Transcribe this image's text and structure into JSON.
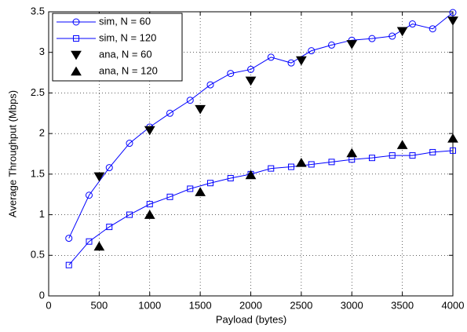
{
  "chart_data": {
    "type": "line",
    "xlabel": "Payload (bytes)",
    "ylabel": "Average Throughput (Mbps)",
    "xlim": [
      0,
      4000
    ],
    "xticks": [
      0,
      500,
      1000,
      1500,
      2000,
      2500,
      3000,
      3500,
      4000
    ],
    "ylim": [
      0,
      3.5
    ],
    "yticks": [
      0,
      0.5,
      1,
      1.5,
      2,
      2.5,
      3,
      3.5
    ],
    "grid": true,
    "legend": "upper left",
    "series": [
      {
        "name": "sim, N = 60",
        "color": "#0000ff",
        "marker": "circle",
        "line": true,
        "x": [
          200,
          400,
          600,
          800,
          1000,
          1200,
          1400,
          1600,
          1800,
          2000,
          2200,
          2400,
          2600,
          2800,
          3000,
          3200,
          3400,
          3600,
          3800,
          4000
        ],
        "values": [
          0.71,
          1.24,
          1.58,
          1.88,
          2.08,
          2.25,
          2.41,
          2.6,
          2.74,
          2.79,
          2.94,
          2.87,
          3.02,
          3.09,
          3.15,
          3.17,
          3.2,
          3.35,
          3.29,
          3.49
        ]
      },
      {
        "name": "sim, N = 120",
        "color": "#0000ff",
        "marker": "square",
        "line": true,
        "x": [
          200,
          400,
          600,
          800,
          1000,
          1200,
          1400,
          1600,
          1800,
          2000,
          2200,
          2400,
          2600,
          2800,
          3000,
          3200,
          3400,
          3600,
          3800,
          4000
        ],
        "values": [
          0.38,
          0.67,
          0.85,
          1.0,
          1.13,
          1.22,
          1.32,
          1.39,
          1.45,
          1.5,
          1.57,
          1.59,
          1.62,
          1.65,
          1.68,
          1.7,
          1.73,
          1.73,
          1.77,
          1.79
        ]
      },
      {
        "name": "ana, N = 60",
        "color": "#000000",
        "marker": "triangle-down",
        "line": false,
        "x": [
          500,
          1000,
          1500,
          2000,
          2500,
          3000,
          3500,
          4000
        ],
        "values": [
          1.47,
          2.04,
          2.3,
          2.65,
          2.9,
          3.1,
          3.26,
          3.39
        ]
      },
      {
        "name": "ana, N = 120",
        "color": "#000000",
        "marker": "triangle-up",
        "line": false,
        "x": [
          500,
          1000,
          1500,
          2000,
          2500,
          3000,
          3500,
          4000
        ],
        "values": [
          0.61,
          1.0,
          1.28,
          1.49,
          1.64,
          1.76,
          1.86,
          1.94
        ]
      }
    ]
  }
}
